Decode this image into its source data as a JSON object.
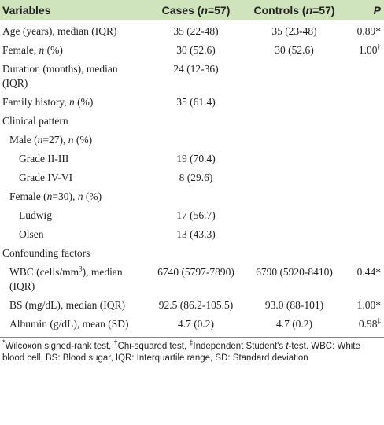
{
  "table": {
    "header": {
      "variables": "Variables",
      "cases": [
        {
          "text": "Cases ("
        },
        {
          "text": "n",
          "style": "italic"
        },
        {
          "text": "=57)"
        }
      ],
      "controls": [
        {
          "text": "Controls ("
        },
        {
          "text": "n",
          "style": "italic"
        },
        {
          "text": "=57)"
        }
      ],
      "p": [
        {
          "text": "P",
          "style": "italic"
        }
      ]
    },
    "rows": [
      {
        "level": 0,
        "label": "Age (years), median (IQR)",
        "cases": "35 (22-48)",
        "controls": "35 (23-48)",
        "p": "0.89*"
      },
      {
        "level": 0,
        "label": [
          {
            "text": "Female, "
          },
          {
            "text": "n",
            "style": "italic"
          },
          {
            "text": " (%)"
          }
        ],
        "cases": "30 (52.6)",
        "controls": "30 (52.6)",
        "p": [
          {
            "text": "1.00"
          },
          {
            "text": "†",
            "style": "sup"
          }
        ]
      },
      {
        "level": 0,
        "label": "Duration (months), median (IQR)",
        "cases": "24 (12-36)"
      },
      {
        "level": 0,
        "label": [
          {
            "text": "Family history, "
          },
          {
            "text": "n",
            "style": "italic"
          },
          {
            "text": " (%)"
          }
        ],
        "cases": "35 (61.4)"
      },
      {
        "level": 0,
        "label": "Clinical pattern"
      },
      {
        "level": 1,
        "label": [
          {
            "text": "Male ("
          },
          {
            "text": "n",
            "style": "italic"
          },
          {
            "text": "=27), "
          },
          {
            "text": "n",
            "style": "italic"
          },
          {
            "text": " (%)"
          }
        ]
      },
      {
        "level": 2,
        "label": "Grade II-III",
        "cases": "19 (70.4)"
      },
      {
        "level": 2,
        "label": "Grade IV-VI",
        "cases": "8 (29.6)"
      },
      {
        "level": 1,
        "label": [
          {
            "text": "Female ("
          },
          {
            "text": "n",
            "style": "italic"
          },
          {
            "text": "=30), "
          },
          {
            "text": "n",
            "style": "italic"
          },
          {
            "text": " (%)"
          }
        ]
      },
      {
        "level": 2,
        "label": "Ludwig",
        "cases": "17 (56.7)"
      },
      {
        "level": 2,
        "label": "Olsen",
        "cases": "13 (43.3)"
      },
      {
        "level": 0,
        "label": "Confounding factors"
      },
      {
        "level": 1,
        "label": [
          {
            "text": "WBC (cells/mm"
          },
          {
            "text": "3",
            "style": "sup"
          },
          {
            "text": "), median (IQR)"
          }
        ],
        "cases": "6740 (5797-7890)",
        "controls": "6790 (5920-8410)",
        "p": "0.44*"
      },
      {
        "level": 1,
        "label": "BS (mg/dL), median (IQR)",
        "cases": "92.5 (86.2-105.5)",
        "controls": "93.0 (88-101)",
        "p": "1.00*"
      },
      {
        "level": 1,
        "label": "Albumin (g/dL), mean (SD)",
        "cases": "4.7 (0.2)",
        "controls": "4.7 (0.2)",
        "p": [
          {
            "text": "0.98"
          },
          {
            "text": "‡",
            "style": "sup"
          }
        ]
      }
    ],
    "footnote": [
      {
        "text": "*",
        "style": "sup"
      },
      {
        "text": "Wilcoxon signed-rank test, "
      },
      {
        "text": "†",
        "style": "sup"
      },
      {
        "text": "Chi-squared test, "
      },
      {
        "text": "‡",
        "style": "sup"
      },
      {
        "text": "Independent Student's "
      },
      {
        "text": "t",
        "style": "italic"
      },
      {
        "text": "-test. WBC: White blood cell, BS: Blood sugar, IQR: Interquartile range, SD: Standard deviation"
      }
    ]
  }
}
